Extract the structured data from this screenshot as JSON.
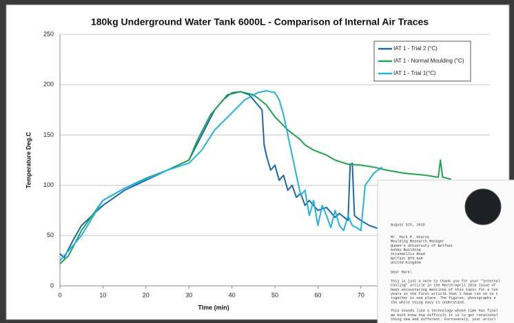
{
  "chart_data": {
    "type": "line",
    "title": "180kg  Underground Water Tank 6000L - Comparison of Internal Air Traces",
    "xlabel": "Time (min)",
    "ylabel": "Temperature  Deg.C",
    "xlim": [
      0,
      100
    ],
    "ylim": [
      0,
      250
    ],
    "xticks": [
      0,
      10,
      20,
      30,
      40,
      50,
      60,
      70
    ],
    "yticks": [
      0,
      50,
      100,
      150,
      200,
      250
    ],
    "grid": true,
    "legend": "upper right",
    "series": [
      {
        "name": "IAT 1 - Trial 2 (°C)",
        "color": "#1a65ab",
        "x": [
          0,
          1,
          3,
          5,
          10,
          15,
          20,
          25,
          30,
          33,
          36,
          39,
          42,
          44,
          45,
          46,
          47,
          47.5,
          48,
          49,
          50,
          51,
          52,
          53,
          54,
          55,
          56,
          57,
          58,
          60,
          62,
          64,
          65,
          67,
          67.5,
          68,
          68.5,
          69,
          70,
          72,
          74
        ],
        "values": [
          32,
          28,
          45,
          60,
          80,
          95,
          105,
          115,
          125,
          150,
          175,
          190,
          193,
          190,
          185,
          180,
          175,
          140,
          130,
          115,
          120,
          105,
          110,
          95,
          100,
          88,
          92,
          80,
          85,
          75,
          78,
          68,
          72,
          65,
          120,
          122,
          70,
          68,
          65,
          60,
          57
        ]
      },
      {
        "name": "IAT 1 - Normal Moulding (°C)",
        "color": "#1fa34f",
        "x": [
          0,
          2,
          5,
          10,
          15,
          20,
          25,
          30,
          32,
          35,
          38,
          40,
          42,
          45,
          48,
          50,
          53,
          56,
          57,
          59,
          62,
          64,
          67,
          70,
          73,
          76,
          80,
          85,
          88,
          88.5,
          89,
          91
        ],
        "values": [
          22,
          30,
          55,
          85,
          97,
          107,
          115,
          125,
          145,
          170,
          185,
          192,
          193,
          190,
          180,
          168,
          155,
          145,
          140,
          135,
          130,
          125,
          121,
          120,
          118,
          115,
          112,
          110,
          108,
          125,
          108,
          106
        ]
      },
      {
        "name": "IAT 1 - Trial 1(°C)",
        "color": "#22b1e6",
        "x": [
          0,
          5,
          10,
          15,
          20,
          25,
          30,
          33,
          36,
          40,
          43,
          46,
          48,
          50,
          51,
          52,
          53,
          54,
          55,
          56,
          57,
          58,
          59,
          60,
          61,
          62,
          63,
          64,
          65,
          66,
          67,
          68,
          69,
          70,
          71,
          73,
          75
        ],
        "values": [
          25,
          50,
          85,
          97,
          106,
          115,
          122,
          135,
          155,
          172,
          185,
          192,
          194,
          192,
          185,
          170,
          150,
          130,
          110,
          90,
          95,
          70,
          85,
          60,
          80,
          70,
          58,
          75,
          60,
          55,
          70,
          60,
          58,
          55,
          100,
          112,
          118
        ]
      }
    ]
  },
  "letter": {
    "date": "August 5th, 2016",
    "address": [
      "Mr. Mark P. Kearns",
      "Moulding Research Manager",
      "Queen's University of Belfast",
      "Ashby Building",
      "Stranmillis Road",
      "Belfast BT9 5AH",
      "United Kingdom"
    ],
    "salutation": "Dear Mark:",
    "paragraphs": [
      [
        "This is just a note to thank you for your \"Internal",
        "Cooling\" article in the March/April 2016 issue of",
        "been encountering mentions of this topic for a lon",
        "years in the first article that I have run on to t",
        "together in one place.  The figures, photographs a",
        "the whole thing easy to understand."
      ],
      [
        "This sounds like a technology whose time has final",
        "we both know how difficult it is to get rotational",
        "thing new and different.  Fortunately, your articl"
      ]
    ]
  }
}
